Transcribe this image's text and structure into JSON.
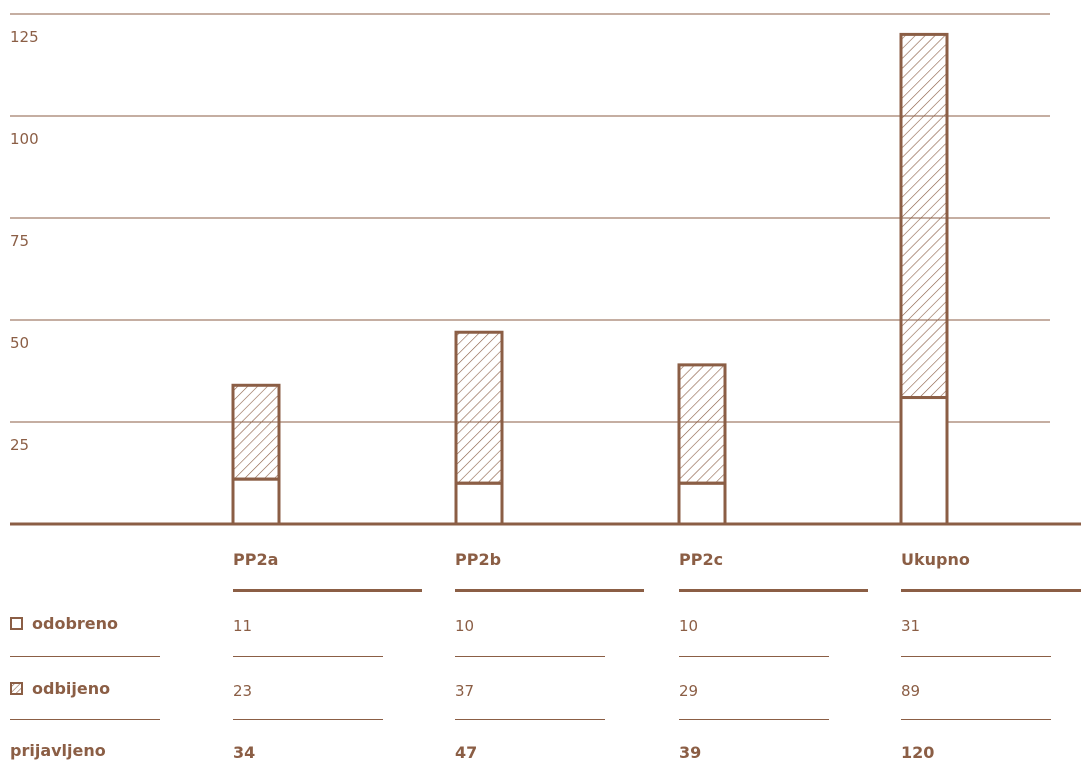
{
  "colors": {
    "accent": "#8b5e45",
    "background": "#ffffff"
  },
  "chart_data": {
    "type": "bar",
    "stacked": true,
    "categories": [
      "PP2a",
      "PP2b",
      "PP2c",
      "Ukupno"
    ],
    "series": [
      {
        "name": "odobreno",
        "values": [
          11,
          10,
          10,
          31
        ],
        "fill": "empty"
      },
      {
        "name": "odbijeno",
        "values": [
          23,
          37,
          29,
          89
        ],
        "fill": "hatched"
      }
    ],
    "totals": [
      34,
      47,
      39,
      120
    ],
    "y_ticks": [
      "25",
      "50",
      "75",
      "100",
      "125"
    ],
    "ylim": [
      0,
      125
    ],
    "grid": true,
    "title": "",
    "xlabel": "",
    "ylabel": ""
  },
  "table": {
    "columns": [
      "PP2a",
      "PP2b",
      "PP2c",
      "Ukupno"
    ],
    "rows": [
      {
        "label": "odobreno",
        "swatch": "empty",
        "values": [
          "11",
          "10",
          "10",
          "31"
        ]
      },
      {
        "label": "odbijeno",
        "swatch": "hatched",
        "values": [
          "23",
          "37",
          "29",
          "89"
        ]
      },
      {
        "label": "prijavljeno",
        "swatch": "none",
        "values": [
          "34",
          "47",
          "39",
          "120"
        ]
      }
    ]
  }
}
